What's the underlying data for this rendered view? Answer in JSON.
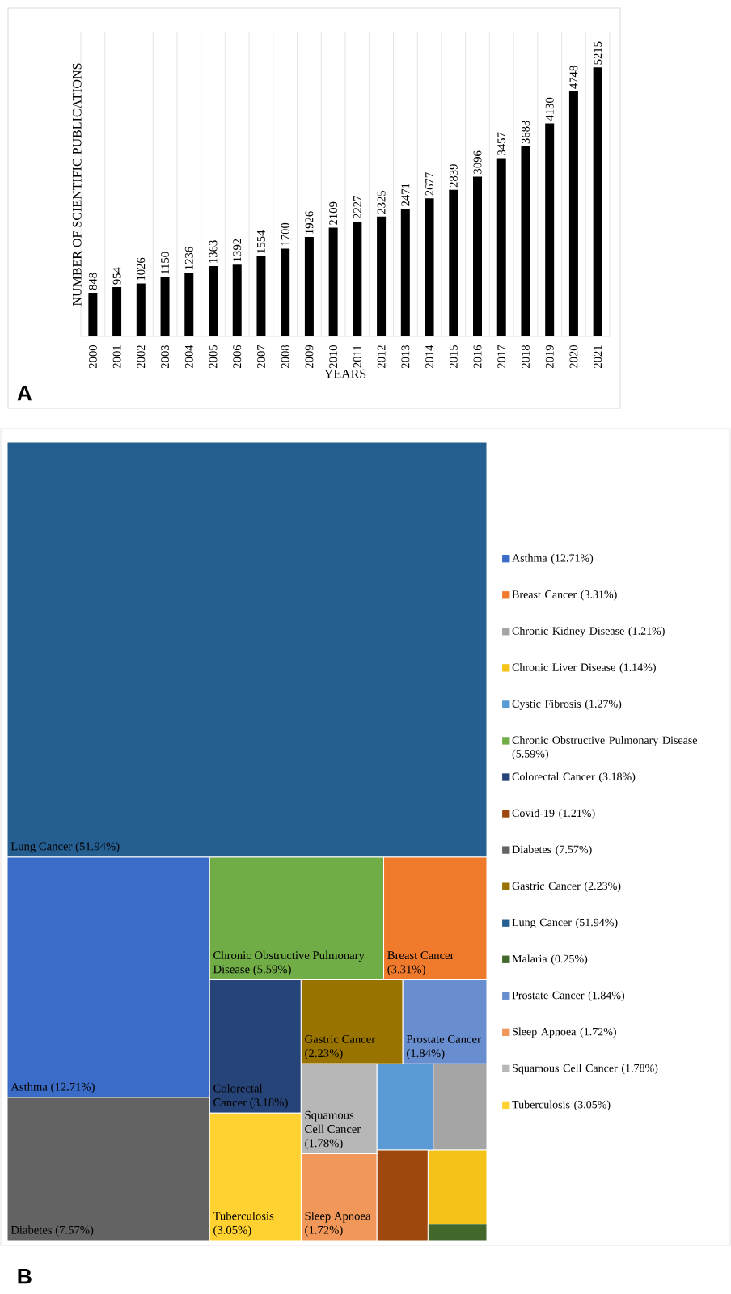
{
  "chart_data": [
    {
      "type": "bar",
      "xlabel": "YEARS",
      "ylabel": "NUMBER OF SCIENTIFIC PUBLICATIONS",
      "categories": [
        "2000",
        "2001",
        "2002",
        "2003",
        "2004",
        "2005",
        "2006",
        "2007",
        "2008",
        "2009",
        "2010",
        "2011",
        "2012",
        "2013",
        "2014",
        "2015",
        "2016",
        "2017",
        "2018",
        "2019",
        "2020",
        "2021"
      ],
      "values": [
        848,
        954,
        1026,
        1150,
        1236,
        1363,
        1392,
        1554,
        1700,
        1926,
        2109,
        2227,
        2325,
        2471,
        2677,
        2839,
        3096,
        3457,
        3683,
        4130,
        4748,
        5215
      ],
      "color": "#000000",
      "data_labels": true,
      "grid": "x",
      "annotations": [
        "A"
      ]
    },
    {
      "type": "other",
      "annotations": [
        "B"
      ],
      "categories": [
        "Asthma",
        "Breast Cancer",
        "Chronic Kidney Disease",
        "Chronic Liver Disease",
        "Cystic Fibrosis",
        "Chronic Obstructive Pulmonary Disease",
        "Colorectal Cancer",
        "Covid-19",
        "Diabetes",
        "Gastric Cancer",
        "Lung Cancer",
        "Malaria",
        "Prostate Cancer",
        "Sleep Apnoea",
        "Squamous Cell Cancer",
        "Tuberculosis"
      ],
      "value_labels": [
        "(12.71%)",
        "(3.31%)",
        "(1.21%)",
        "(1.14%)",
        "(1.27%)",
        "(5.59%)",
        "(3.18%)",
        "(1.21%)",
        "(7.57%)",
        "(2.23%)",
        "(51.94%)",
        "(0.25%)",
        "(1.84%)",
        "(1.72%)",
        "(1.78%)",
        "(3.05%)"
      ],
      "values": [
        12.71,
        3.31,
        1.21,
        1.14,
        1.27,
        5.59,
        3.18,
        1.21,
        7.57,
        2.23,
        51.94,
        0.25,
        1.84,
        1.72,
        1.78,
        3.05
      ],
      "colors": [
        "#3a6cc8",
        "#f07a2c",
        "#a5a5a5",
        "#f5c218",
        "#5b9bd5",
        "#70ad47",
        "#264478",
        "#9e480e",
        "#636363",
        "#997300",
        "#255e91",
        "#43682b",
        "#698ed0",
        "#f1975a",
        "#b7b7b7",
        "#ffd232"
      ]
    }
  ]
}
